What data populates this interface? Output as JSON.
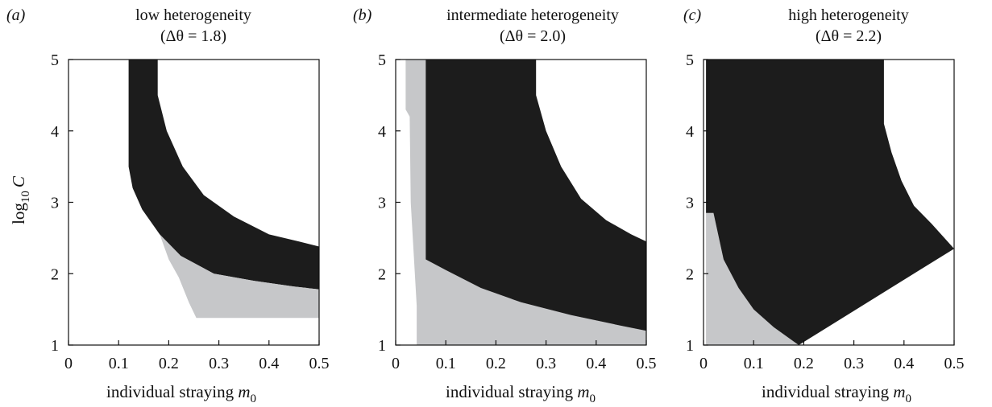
{
  "figure": {
    "ylabel": {
      "base": "log",
      "sub": "10",
      "var": "C"
    },
    "xlabel": {
      "text": "individual straying ",
      "var": "m",
      "sub": "0"
    }
  },
  "colors": {
    "dark": "#1c1c1c",
    "light": "#c6c7c9",
    "background": "#ffffff"
  },
  "panels": [
    {
      "letter": "(a)",
      "title": "low heterogeneity",
      "subtitle": "(Δθ = 1.8)"
    },
    {
      "letter": "(b)",
      "title": "intermediate heterogeneity",
      "subtitle": "(Δθ = 2.0)"
    },
    {
      "letter": "(c)",
      "title": "high heterogeneity",
      "subtitle": "(Δθ = 2.2)"
    }
  ],
  "chart_data": [
    {
      "type": "area",
      "panel": "(a)",
      "title": "low heterogeneity (Δθ = 1.8)",
      "xlabel": "individual straying m0",
      "ylabel": "log10 C",
      "xlim": [
        0,
        0.5
      ],
      "ylim": [
        1,
        5
      ],
      "xticks": [
        "0",
        "0.1",
        "0.2",
        "0.3",
        "0.4",
        "0.5"
      ],
      "yticks": [
        "1",
        "2",
        "3",
        "4",
        "5"
      ],
      "regions": [
        {
          "fill": "dark",
          "outer_x0": [
            0.12,
            0.12,
            0.128,
            0.147,
            0.182,
            0.224,
            0.29,
            0.37,
            0.45,
            0.5
          ],
          "outer_y": [
            5.0,
            3.5,
            3.2,
            2.9,
            2.55,
            2.25,
            2.0,
            1.9,
            1.82,
            1.78
          ],
          "inner": [
            [
              0.178,
              5.0
            ],
            [
              0.178,
              4.5
            ],
            [
              0.196,
              4.0
            ],
            [
              0.228,
              3.5
            ],
            [
              0.27,
              3.1
            ],
            [
              0.33,
              2.8
            ],
            [
              0.4,
              2.55
            ],
            [
              0.46,
              2.45
            ],
            [
              0.5,
              2.38
            ]
          ]
        },
        {
          "fill": "light",
          "boundary": [
            [
              0.5,
              1.78
            ],
            [
              0.45,
              1.82
            ],
            [
              0.37,
              1.9
            ],
            [
              0.29,
              2.0
            ],
            [
              0.224,
              2.25
            ],
            [
              0.182,
              2.55
            ],
            [
              0.2,
              2.2
            ],
            [
              0.22,
              1.95
            ],
            [
              0.24,
              1.6
            ],
            [
              0.255,
              1.38
            ],
            [
              0.5,
              1.38
            ]
          ]
        }
      ]
    },
    {
      "type": "area",
      "panel": "(b)",
      "title": "intermediate heterogeneity (Δθ = 2.0)",
      "xlabel": "individual straying m0",
      "ylabel": "log10 C",
      "xlim": [
        0,
        0.5
      ],
      "ylim": [
        1,
        5
      ],
      "xticks": [
        "0",
        "0.1",
        "0.2",
        "0.3",
        "0.4",
        "0.5"
      ],
      "yticks": [
        "1",
        "2",
        "3",
        "4",
        "5"
      ],
      "regions": [
        {
          "fill": "light",
          "boundary": [
            [
              0.02,
              5.0
            ],
            [
              0.06,
              5.0
            ],
            [
              0.06,
              2.2
            ],
            [
              0.1,
              2.05
            ],
            [
              0.17,
              1.8
            ],
            [
              0.25,
              1.6
            ],
            [
              0.35,
              1.42
            ],
            [
              0.45,
              1.27
            ],
            [
              0.5,
              1.2
            ],
            [
              0.5,
              1.0
            ],
            [
              0.042,
              1.0
            ],
            [
              0.042,
              1.55
            ],
            [
              0.03,
              3.0
            ],
            [
              0.028,
              4.2
            ],
            [
              0.02,
              4.3
            ]
          ]
        },
        {
          "fill": "dark",
          "outer": [
            [
              0.06,
              5.0
            ],
            [
              0.06,
              2.2
            ],
            [
              0.1,
              2.05
            ],
            [
              0.17,
              1.8
            ],
            [
              0.25,
              1.6
            ],
            [
              0.35,
              1.42
            ],
            [
              0.45,
              1.27
            ],
            [
              0.5,
              1.2
            ]
          ],
          "inner": [
            [
              0.28,
              5.0
            ],
            [
              0.28,
              4.5
            ],
            [
              0.3,
              4.0
            ],
            [
              0.33,
              3.5
            ],
            [
              0.37,
              3.05
            ],
            [
              0.42,
              2.75
            ],
            [
              0.47,
              2.55
            ],
            [
              0.5,
              2.45
            ]
          ]
        }
      ]
    },
    {
      "type": "area",
      "panel": "(c)",
      "title": "high heterogeneity (Δθ = 2.2)",
      "xlabel": "individual straying m0",
      "ylabel": "log10 C",
      "xlim": [
        0,
        0.5
      ],
      "ylim": [
        1,
        5
      ],
      "xticks": [
        "0",
        "0.1",
        "0.2",
        "0.3",
        "0.4",
        "0.5"
      ],
      "yticks": [
        "1",
        "2",
        "3",
        "4",
        "5"
      ],
      "regions": [
        {
          "fill": "light",
          "boundary": [
            [
              0.005,
              2.85
            ],
            [
              0.02,
              2.85
            ],
            [
              0.04,
              2.2
            ],
            [
              0.07,
              1.8
            ],
            [
              0.1,
              1.5
            ],
            [
              0.14,
              1.25
            ],
            [
              0.18,
              1.05
            ],
            [
              0.19,
              1.0
            ],
            [
              0.005,
              1.0
            ]
          ]
        },
        {
          "fill": "dark",
          "outer": [
            [
              0.005,
              5.0
            ],
            [
              0.005,
              2.85
            ],
            [
              0.02,
              2.85
            ],
            [
              0.04,
              2.2
            ],
            [
              0.07,
              1.8
            ],
            [
              0.1,
              1.5
            ],
            [
              0.14,
              1.25
            ],
            [
              0.18,
              1.05
            ],
            [
              0.19,
              1.0
            ]
          ],
          "inner": [
            [
              0.36,
              5.0
            ],
            [
              0.36,
              4.1
            ],
            [
              0.375,
              3.7
            ],
            [
              0.395,
              3.3
            ],
            [
              0.42,
              2.95
            ],
            [
              0.455,
              2.7
            ],
            [
              0.5,
              2.35
            ]
          ]
        }
      ]
    }
  ]
}
